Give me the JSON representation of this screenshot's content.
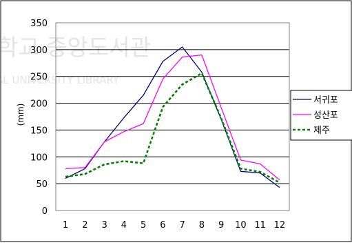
{
  "watermark": {
    "line1": "학교 중앙도서관",
    "line2": "AL UNIVERSITY LIBRARY"
  },
  "chart_data": {
    "type": "line",
    "title": "",
    "xlabel": "",
    "ylabel": "(mm)",
    "x": [
      1,
      2,
      3,
      4,
      5,
      6,
      7,
      8,
      9,
      10,
      11,
      12
    ],
    "ylim": [
      0,
      350
    ],
    "yticks": [
      0,
      50,
      100,
      150,
      200,
      250,
      300,
      350
    ],
    "grid": "horizontal",
    "legend_position": "right",
    "series": [
      {
        "name": "서귀포",
        "color": "#000080",
        "dash": "solid",
        "values": [
          60,
          78,
          128,
          173,
          215,
          278,
          305,
          258,
          170,
          73,
          70,
          43
        ]
      },
      {
        "name": "성산포",
        "color": "#ff00ff",
        "dash": "solid",
        "values": [
          78,
          80,
          128,
          147,
          162,
          245,
          286,
          290,
          192,
          94,
          87,
          57
        ]
      },
      {
        "name": "제주",
        "color": "#008000",
        "dash": "dotted",
        "values": [
          63,
          68,
          86,
          92,
          88,
          193,
          235,
          256,
          172,
          78,
          72,
          52
        ]
      }
    ]
  }
}
